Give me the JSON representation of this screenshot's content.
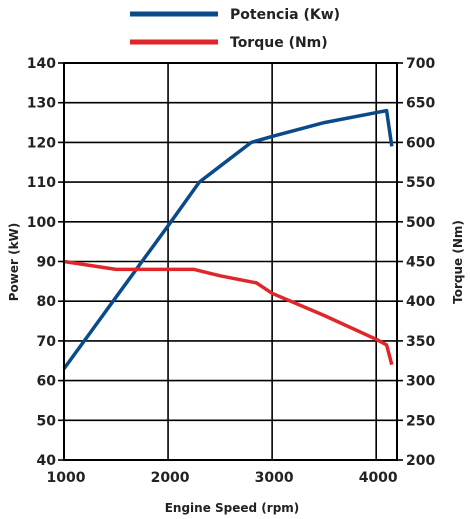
{
  "chart_data": {
    "type": "line",
    "xlabel": "Engine Speed (rpm)",
    "ylabel": "Power (kW)",
    "y2label": "Torque (Nm)",
    "xlim": [
      1000,
      4200
    ],
    "ylim": [
      40,
      140
    ],
    "y2lim": [
      200,
      700
    ],
    "x_ticks": [
      "1000",
      "2000",
      "3000",
      "4000"
    ],
    "x_tick_values": [
      1000,
      2000,
      3000,
      4000
    ],
    "y_ticks": [
      "40",
      "50",
      "60",
      "70",
      "80",
      "90",
      "100",
      "110",
      "120",
      "130",
      "140"
    ],
    "y_tick_values": [
      40,
      50,
      60,
      70,
      80,
      90,
      100,
      110,
      120,
      130,
      140
    ],
    "y2_ticks": [
      "200",
      "250",
      "300",
      "350",
      "400",
      "450",
      "500",
      "550",
      "600",
      "650",
      "700"
    ],
    "y2_tick_values": [
      200,
      250,
      300,
      350,
      400,
      450,
      500,
      550,
      600,
      650,
      700
    ],
    "grid": "major x and y",
    "legend_position": "top-center",
    "series": [
      {
        "name": "Potencia (Kw)",
        "axis": "left",
        "color": "#0b4a8a",
        "x": [
          1000,
          1250,
          1500,
          1750,
          2000,
          2300,
          2500,
          2800,
          3000,
          3500,
          4100,
          4150
        ],
        "y": [
          63,
          72,
          81,
          90,
          99,
          110,
          114,
          120,
          121.5,
          125,
          128,
          119
        ]
      },
      {
        "name": "Torque (Nm)",
        "axis": "right",
        "color": "#e0262b",
        "x": [
          1000,
          1500,
          1750,
          2250,
          2500,
          2850,
          3000,
          3500,
          4000,
          4100,
          4150
        ],
        "y": [
          450,
          440,
          440,
          440,
          432,
          423,
          410,
          382,
          352,
          345,
          320
        ]
      }
    ]
  }
}
